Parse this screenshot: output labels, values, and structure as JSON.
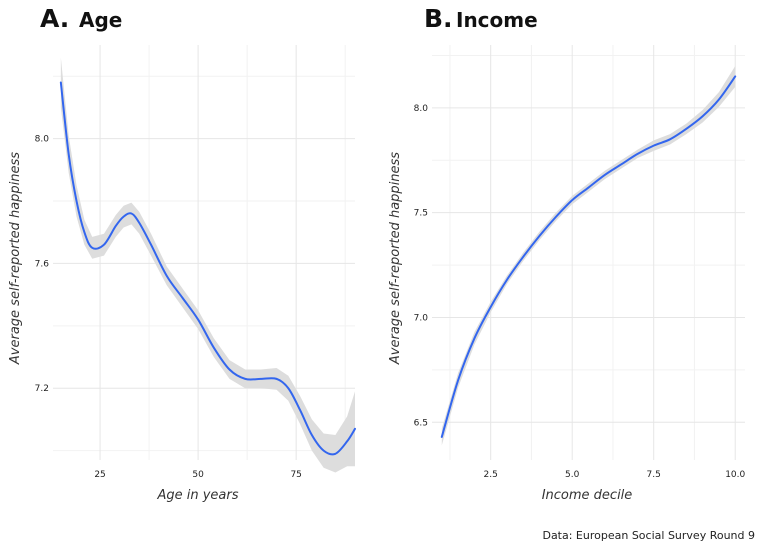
{
  "chart_data": [
    {
      "type": "line",
      "panel": "A.",
      "title": "Age",
      "xlabel": "Age in years",
      "ylabel": "Average self-reported happiness",
      "xlim": [
        13,
        90
      ],
      "ylim": [
        6.97,
        8.3
      ],
      "xticks": [
        25,
        50,
        75
      ],
      "yticks": [
        7.2,
        7.6,
        8.0
      ],
      "ytick_labels": [
        "7.2",
        "7.6",
        "8.0"
      ],
      "grid": true,
      "series": [
        {
          "color": "#3366ee",
          "band_color": "#dddddd",
          "points": [
            {
              "x": 15,
              "y": 8.18,
              "ci": 0.08
            },
            {
              "x": 17,
              "y": 7.95,
              "ci": 0.06
            },
            {
              "x": 19,
              "y": 7.8,
              "ci": 0.05
            },
            {
              "x": 21,
              "y": 7.7,
              "ci": 0.04
            },
            {
              "x": 23,
              "y": 7.65,
              "ci": 0.035
            },
            {
              "x": 26,
              "y": 7.66,
              "ci": 0.035
            },
            {
              "x": 29,
              "y": 7.72,
              "ci": 0.035
            },
            {
              "x": 31,
              "y": 7.75,
              "ci": 0.035
            },
            {
              "x": 33,
              "y": 7.76,
              "ci": 0.035
            },
            {
              "x": 35,
              "y": 7.73,
              "ci": 0.035
            },
            {
              "x": 38,
              "y": 7.66,
              "ci": 0.035
            },
            {
              "x": 42,
              "y": 7.56,
              "ci": 0.03
            },
            {
              "x": 46,
              "y": 7.49,
              "ci": 0.03
            },
            {
              "x": 50,
              "y": 7.42,
              "ci": 0.03
            },
            {
              "x": 54,
              "y": 7.33,
              "ci": 0.03
            },
            {
              "x": 58,
              "y": 7.26,
              "ci": 0.03
            },
            {
              "x": 62,
              "y": 7.23,
              "ci": 0.03
            },
            {
              "x": 66,
              "y": 7.23,
              "ci": 0.03
            },
            {
              "x": 70,
              "y": 7.23,
              "ci": 0.035
            },
            {
              "x": 73,
              "y": 7.2,
              "ci": 0.04
            },
            {
              "x": 76,
              "y": 7.13,
              "ci": 0.045
            },
            {
              "x": 79,
              "y": 7.05,
              "ci": 0.05
            },
            {
              "x": 82,
              "y": 7.0,
              "ci": 0.055
            },
            {
              "x": 85,
              "y": 6.99,
              "ci": 0.06
            },
            {
              "x": 88,
              "y": 7.03,
              "ci": 0.08
            },
            {
              "x": 90,
              "y": 7.07,
              "ci": 0.12
            }
          ]
        }
      ]
    },
    {
      "type": "line",
      "panel": "B.",
      "title": "Income",
      "xlabel": "Income decile",
      "ylabel": "Average self-reported happiness",
      "xlim": [
        0.7,
        10.3
      ],
      "ylim": [
        6.32,
        8.3
      ],
      "xticks": [
        2.5,
        5.0,
        7.5,
        10.0
      ],
      "xtick_labels": [
        "2.5",
        "5.0",
        "7.5",
        "10.0"
      ],
      "yticks": [
        6.5,
        7.0,
        7.5,
        8.0
      ],
      "ytick_labels": [
        "6.5",
        "7.0",
        "7.5",
        "8.0"
      ],
      "grid": true,
      "series": [
        {
          "color": "#3366ee",
          "band_color": "#dddddd",
          "points": [
            {
              "x": 1.0,
              "y": 6.43,
              "ci": 0.04
            },
            {
              "x": 1.5,
              "y": 6.7,
              "ci": 0.035
            },
            {
              "x": 2.0,
              "y": 6.9,
              "ci": 0.03
            },
            {
              "x": 2.5,
              "y": 7.05,
              "ci": 0.025
            },
            {
              "x": 3.0,
              "y": 7.18,
              "ci": 0.02
            },
            {
              "x": 3.5,
              "y": 7.29,
              "ci": 0.02
            },
            {
              "x": 4.0,
              "y": 7.39,
              "ci": 0.02
            },
            {
              "x": 4.5,
              "y": 7.48,
              "ci": 0.02
            },
            {
              "x": 5.0,
              "y": 7.56,
              "ci": 0.02
            },
            {
              "x": 5.5,
              "y": 7.62,
              "ci": 0.02
            },
            {
              "x": 6.0,
              "y": 7.68,
              "ci": 0.02
            },
            {
              "x": 6.5,
              "y": 7.73,
              "ci": 0.02
            },
            {
              "x": 7.0,
              "y": 7.78,
              "ci": 0.02
            },
            {
              "x": 7.5,
              "y": 7.82,
              "ci": 0.025
            },
            {
              "x": 8.0,
              "y": 7.85,
              "ci": 0.025
            },
            {
              "x": 8.5,
              "y": 7.9,
              "ci": 0.025
            },
            {
              "x": 9.0,
              "y": 7.96,
              "ci": 0.03
            },
            {
              "x": 9.5,
              "y": 8.04,
              "ci": 0.035
            },
            {
              "x": 10.0,
              "y": 8.15,
              "ci": 0.05
            }
          ]
        }
      ]
    }
  ],
  "source_text": "Data: European Social Survey Round 9"
}
